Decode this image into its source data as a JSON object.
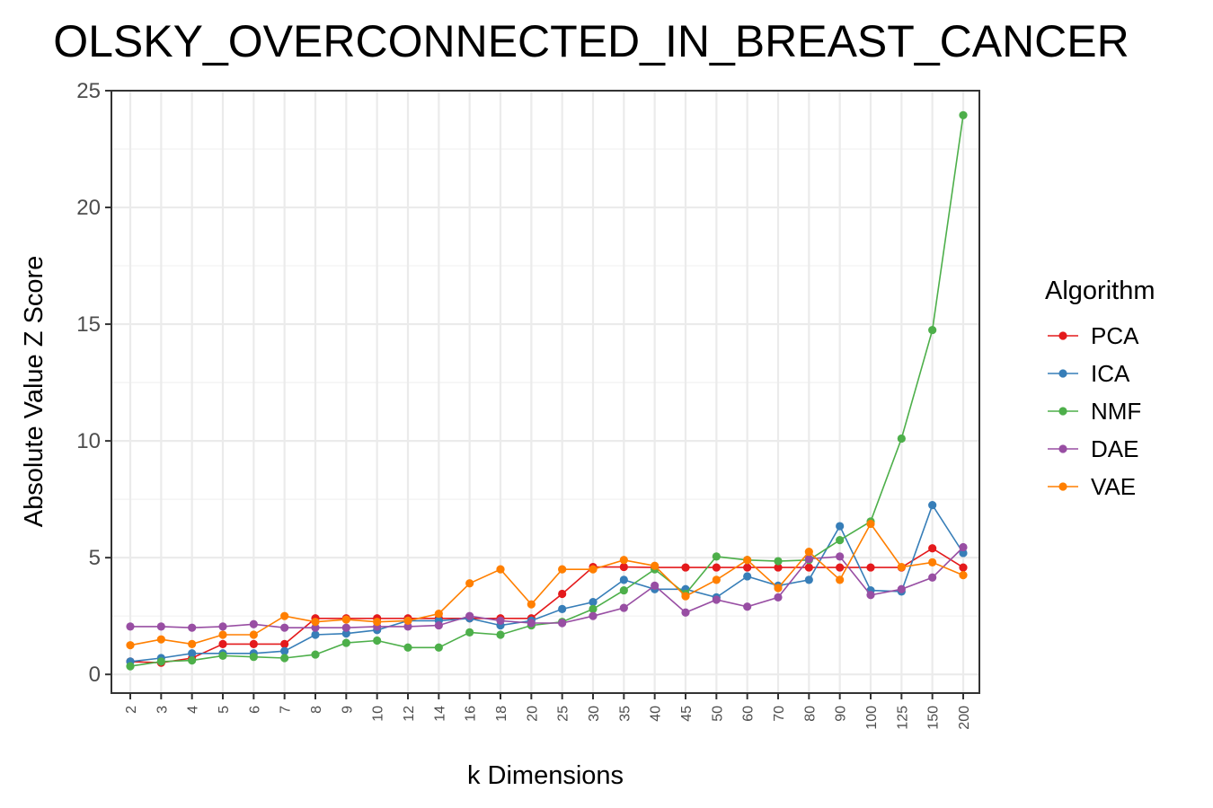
{
  "chart_data": {
    "type": "line",
    "title": "OLSKY_OVERCONNECTED_IN_BREAST_CANCER",
    "xlabel": "k Dimensions",
    "ylabel": "Absolute Value Z Score",
    "ylim": [
      -0.8,
      25
    ],
    "yticks": [
      0,
      5,
      10,
      15,
      20,
      25
    ],
    "grid": true,
    "legend_title": "Algorithm",
    "legend_position": "right",
    "categories": [
      "2",
      "3",
      "4",
      "5",
      "6",
      "7",
      "8",
      "9",
      "10",
      "12",
      "14",
      "16",
      "18",
      "20",
      "25",
      "30",
      "35",
      "40",
      "45",
      "50",
      "60",
      "70",
      "80",
      "90",
      "100",
      "125",
      "150",
      "200"
    ],
    "series": [
      {
        "name": "PCA",
        "color": "#E41A1C",
        "values": [
          0.55,
          0.5,
          0.7,
          1.3,
          1.3,
          1.3,
          2.4,
          2.4,
          2.4,
          2.4,
          2.4,
          2.4,
          2.4,
          2.4,
          3.45,
          4.6,
          4.6,
          4.58,
          4.58,
          4.58,
          4.58,
          4.58,
          4.58,
          4.58,
          4.58,
          4.58,
          5.4,
          4.58
        ]
      },
      {
        "name": "ICA",
        "color": "#377EB8",
        "values": [
          0.55,
          0.7,
          0.9,
          0.9,
          0.9,
          1.0,
          1.7,
          1.75,
          1.9,
          2.3,
          2.3,
          2.4,
          2.1,
          2.3,
          2.8,
          3.1,
          4.05,
          3.65,
          3.65,
          3.3,
          4.2,
          3.8,
          4.05,
          6.35,
          3.6,
          3.55,
          7.25,
          5.2
        ]
      },
      {
        "name": "NMF",
        "color": "#4DAF4A",
        "values": [
          0.35,
          0.55,
          0.6,
          0.8,
          0.75,
          0.7,
          0.85,
          1.35,
          1.45,
          1.15,
          1.15,
          1.8,
          1.7,
          2.1,
          2.25,
          2.8,
          3.6,
          4.5,
          3.45,
          5.05,
          4.9,
          4.85,
          4.9,
          5.75,
          6.55,
          10.1,
          14.75,
          23.95
        ]
      },
      {
        "name": "DAE",
        "color": "#984EA3",
        "values": [
          2.05,
          2.05,
          2.0,
          2.05,
          2.15,
          2.0,
          2.0,
          2.0,
          2.05,
          2.05,
          2.1,
          2.5,
          2.3,
          2.2,
          2.2,
          2.5,
          2.85,
          3.8,
          2.65,
          3.2,
          2.9,
          3.3,
          4.95,
          5.05,
          3.4,
          3.65,
          4.15,
          5.45
        ]
      },
      {
        "name": "VAE",
        "color": "#FF7F00",
        "values": [
          1.25,
          1.5,
          1.3,
          1.7,
          1.7,
          2.5,
          2.25,
          2.35,
          2.25,
          2.3,
          2.6,
          3.9,
          4.5,
          3.0,
          4.5,
          4.5,
          4.9,
          4.65,
          3.35,
          4.05,
          4.9,
          3.7,
          5.25,
          4.05,
          6.45,
          4.6,
          4.8,
          4.25
        ]
      }
    ]
  }
}
